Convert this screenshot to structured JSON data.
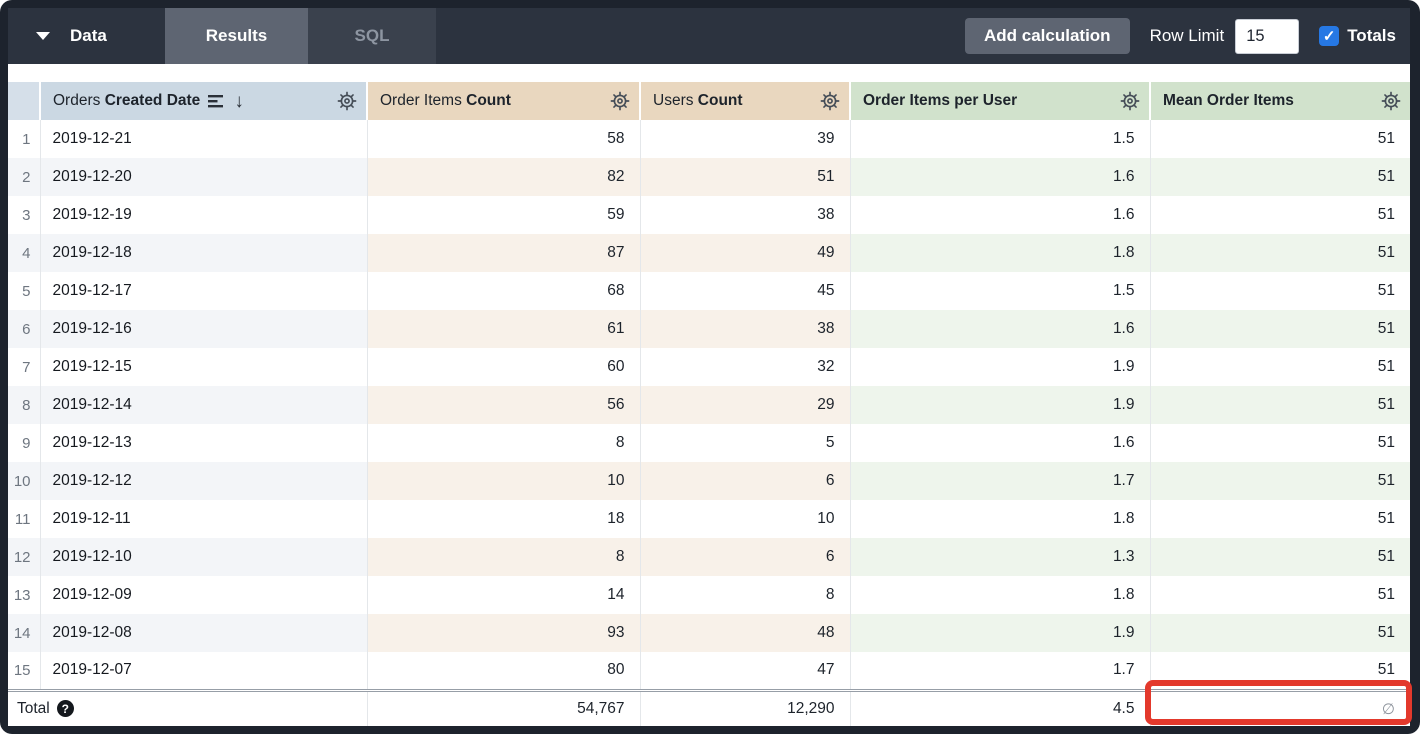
{
  "toolbar": {
    "data_label": "Data",
    "tabs": [
      {
        "label": "Results",
        "active": true
      },
      {
        "label": "SQL",
        "active": false
      }
    ],
    "add_calculation_label": "Add calculation",
    "row_limit_label": "Row Limit",
    "row_limit_value": "15",
    "totals_label": "Totals",
    "totals_checked": true
  },
  "icons": {
    "caret": "caret-down",
    "check": "✓",
    "sort_arrow_down": "↓",
    "help": "?",
    "gear": "gear",
    "null_symbol": "∅"
  },
  "colors": {
    "topbar_bg": "#2c333f",
    "active_tab_bg": "#5e6572",
    "dimension_header_bg": "#cbd8e3",
    "measure_header_bg": "#e9d7bf",
    "table_calc_header_bg": "#d1e2cc",
    "checkbox_blue": "#2678e4",
    "highlight_red": "#e3392c"
  },
  "table": {
    "columns": [
      {
        "prefix": "Orders ",
        "bold": "Created Date",
        "sorted_desc": true
      },
      {
        "prefix": "Order Items ",
        "bold": "Count"
      },
      {
        "prefix": "Users ",
        "bold": "Count"
      },
      {
        "prefix": "",
        "bold": "Order Items per User"
      },
      {
        "prefix": "",
        "bold": "Mean Order Items"
      }
    ],
    "rows": [
      {
        "n": "1",
        "date": "2019-12-21",
        "order_items": "58",
        "users": "39",
        "per_user": "1.5",
        "mean": "51"
      },
      {
        "n": "2",
        "date": "2019-12-20",
        "order_items": "82",
        "users": "51",
        "per_user": "1.6",
        "mean": "51"
      },
      {
        "n": "3",
        "date": "2019-12-19",
        "order_items": "59",
        "users": "38",
        "per_user": "1.6",
        "mean": "51"
      },
      {
        "n": "4",
        "date": "2019-12-18",
        "order_items": "87",
        "users": "49",
        "per_user": "1.8",
        "mean": "51"
      },
      {
        "n": "5",
        "date": "2019-12-17",
        "order_items": "68",
        "users": "45",
        "per_user": "1.5",
        "mean": "51"
      },
      {
        "n": "6",
        "date": "2019-12-16",
        "order_items": "61",
        "users": "38",
        "per_user": "1.6",
        "mean": "51"
      },
      {
        "n": "7",
        "date": "2019-12-15",
        "order_items": "60",
        "users": "32",
        "per_user": "1.9",
        "mean": "51"
      },
      {
        "n": "8",
        "date": "2019-12-14",
        "order_items": "56",
        "users": "29",
        "per_user": "1.9",
        "mean": "51"
      },
      {
        "n": "9",
        "date": "2019-12-13",
        "order_items": "8",
        "users": "5",
        "per_user": "1.6",
        "mean": "51"
      },
      {
        "n": "10",
        "date": "2019-12-12",
        "order_items": "10",
        "users": "6",
        "per_user": "1.7",
        "mean": "51"
      },
      {
        "n": "11",
        "date": "2019-12-11",
        "order_items": "18",
        "users": "10",
        "per_user": "1.8",
        "mean": "51"
      },
      {
        "n": "12",
        "date": "2019-12-10",
        "order_items": "8",
        "users": "6",
        "per_user": "1.3",
        "mean": "51"
      },
      {
        "n": "13",
        "date": "2019-12-09",
        "order_items": "14",
        "users": "8",
        "per_user": "1.8",
        "mean": "51"
      },
      {
        "n": "14",
        "date": "2019-12-08",
        "order_items": "93",
        "users": "48",
        "per_user": "1.9",
        "mean": "51"
      },
      {
        "n": "15",
        "date": "2019-12-07",
        "order_items": "80",
        "users": "47",
        "per_user": "1.7",
        "mean": "51"
      }
    ],
    "total": {
      "label": "Total",
      "order_items": "54,767",
      "users": "12,290",
      "per_user": "4.5",
      "mean": "∅"
    }
  }
}
